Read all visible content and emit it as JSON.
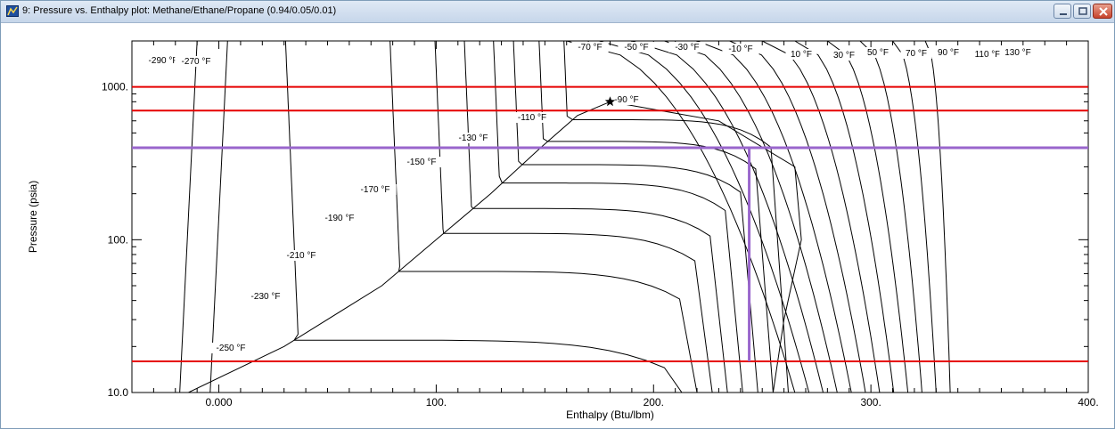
{
  "window": {
    "title": "9: Pressure vs. Enthalpy plot: Methane/Ethane/Propane (0.94/0.05/0.01)",
    "buttons": [
      "minimize",
      "maximize",
      "close"
    ]
  },
  "chart_data": {
    "type": "line",
    "title": "",
    "xlabel": "Enthalpy (Btu/lbm)",
    "ylabel": "Pressure (psia)",
    "xlim": [
      -40,
      400
    ],
    "ylim": [
      10,
      2000
    ],
    "yscale": "log",
    "x_ticks": [
      0,
      100,
      200,
      300,
      400
    ],
    "x_tick_labels": [
      "0.000",
      "100.",
      "200.",
      "300.",
      "400."
    ],
    "y_ticks": [
      10,
      100,
      1000
    ],
    "y_tick_labels": [
      "10.0",
      "100.",
      "1000."
    ],
    "isotherms_F": [
      -290,
      -270,
      -250,
      -230,
      -210,
      -190,
      -170,
      -150,
      -130,
      -110,
      -90,
      -70,
      -50,
      -30,
      -10,
      10,
      30,
      50,
      70,
      90,
      110,
      130
    ],
    "isotherm_labels": [
      "-290 °F",
      "-270 °F",
      "-250 °F",
      "-230 °F",
      "-210 °F",
      "-190 °F",
      "-170 °F",
      "-150 °F",
      "-130 °F",
      "-110 °F",
      "-90 °F",
      "-70 °F",
      "-50 °F",
      "-30 °F",
      "-10 °F",
      "10 °F",
      "30 °F",
      "50 °F",
      "70 °F",
      "90 °F",
      "110 °F",
      "130 °F"
    ],
    "phase_envelope": {
      "dew_curve": [
        [
          -14,
          10
        ],
        [
          30,
          20
        ],
        [
          75,
          50
        ],
        [
          100,
          100
        ],
        [
          125,
          200
        ],
        [
          148,
          400
        ],
        [
          165,
          650
        ],
        [
          180,
          800
        ]
      ],
      "bubble_curve": [
        [
          180,
          800
        ],
        [
          230,
          600
        ],
        [
          265,
          300
        ],
        [
          268,
          100
        ],
        [
          260,
          30
        ],
        [
          255,
          10
        ]
      ],
      "critical_point": [
        180,
        800
      ]
    },
    "horizontal_lines": [
      {
        "pressure": 1000,
        "color": "#e60000"
      },
      {
        "pressure": 700,
        "color": "#e60000"
      },
      {
        "pressure": 400,
        "color": "#9966cc"
      },
      {
        "pressure": 16,
        "color": "#e60000"
      }
    ],
    "vertical_lines": [
      {
        "enthalpy": 244,
        "p_from": 16,
        "p_to": 400,
        "color": "#9966cc"
      }
    ],
    "grid": false,
    "legend": "none"
  }
}
